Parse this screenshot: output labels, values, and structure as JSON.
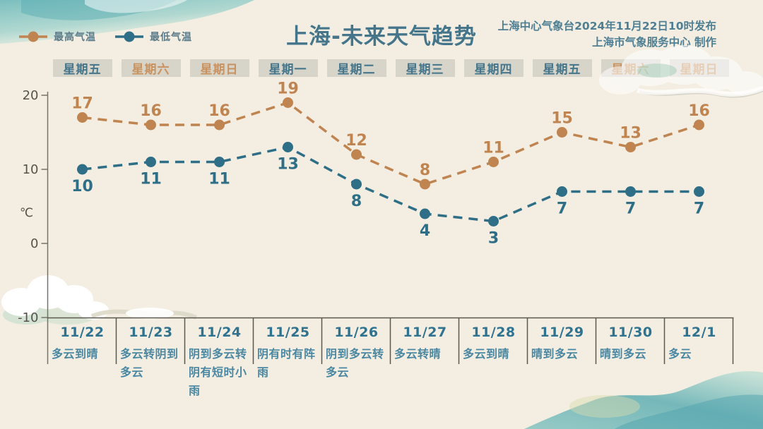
{
  "page": {
    "title": "上海-未来天气趋势",
    "source_line1": "上海中心气象台2024年11月22日10时发布",
    "source_line2": "上海市气象服务中心 制作"
  },
  "legend": [
    {
      "label": "最高气温",
      "color": "#c08451"
    },
    {
      "label": "最低气温",
      "color": "#2e6e86"
    }
  ],
  "axis": {
    "unit": "℃",
    "yticks": [
      20,
      10,
      0,
      -10
    ]
  },
  "days": [
    {
      "weekday": "星期五",
      "weekend": false,
      "date": "11/22",
      "weather": "多云到晴",
      "high": 17,
      "low": 10
    },
    {
      "weekday": "星期六",
      "weekend": true,
      "date": "11/23",
      "weather": "多云转阴到多云",
      "high": 16,
      "low": 11
    },
    {
      "weekday": "星期日",
      "weekend": true,
      "date": "11/24",
      "weather": "阴到多云转阴有短时小雨",
      "high": 16,
      "low": 11
    },
    {
      "weekday": "星期一",
      "weekend": false,
      "date": "11/25",
      "weather": "阴有时有阵雨",
      "high": 19,
      "low": 13
    },
    {
      "weekday": "星期二",
      "weekend": false,
      "date": "11/26",
      "weather": "阴到多云转多云",
      "high": 12,
      "low": 8
    },
    {
      "weekday": "星期三",
      "weekend": false,
      "date": "11/27",
      "weather": "多云转晴",
      "high": 8,
      "low": 4
    },
    {
      "weekday": "星期四",
      "weekend": false,
      "date": "11/28",
      "weather": "多云到晴",
      "high": 11,
      "low": 3
    },
    {
      "weekday": "星期五",
      "weekend": false,
      "date": "11/29",
      "weather": "晴到多云",
      "high": 15,
      "low": 7
    },
    {
      "weekday": "星期六",
      "weekend": true,
      "date": "11/30",
      "weather": "晴到多云",
      "high": 13,
      "low": 7
    },
    {
      "weekday": "星期日",
      "weekend": true,
      "date": "12/1",
      "weather": "多云",
      "high": 16,
      "low": 7
    }
  ],
  "chart_data": {
    "type": "line",
    "title": "上海-未来天气趋势",
    "categories": [
      "11/22",
      "11/23",
      "11/24",
      "11/25",
      "11/26",
      "11/27",
      "11/28",
      "11/29",
      "11/30",
      "12/1"
    ],
    "weekdays": [
      "星期五",
      "星期六",
      "星期日",
      "星期一",
      "星期二",
      "星期三",
      "星期四",
      "星期五",
      "星期六",
      "星期日"
    ],
    "series": [
      {
        "name": "最高气温",
        "values": [
          17,
          16,
          16,
          19,
          12,
          8,
          11,
          15,
          13,
          16
        ],
        "color": "#c08451"
      },
      {
        "name": "最低气温",
        "values": [
          10,
          11,
          11,
          13,
          8,
          4,
          3,
          7,
          7,
          7
        ],
        "color": "#2e6e86"
      }
    ],
    "ylabel": "℃",
    "ylim": [
      -10,
      20
    ],
    "yticks": [
      20,
      10,
      0,
      -10
    ],
    "grid": false,
    "legend_position": "top-left",
    "line_style": "dashed",
    "marker": "circle"
  }
}
